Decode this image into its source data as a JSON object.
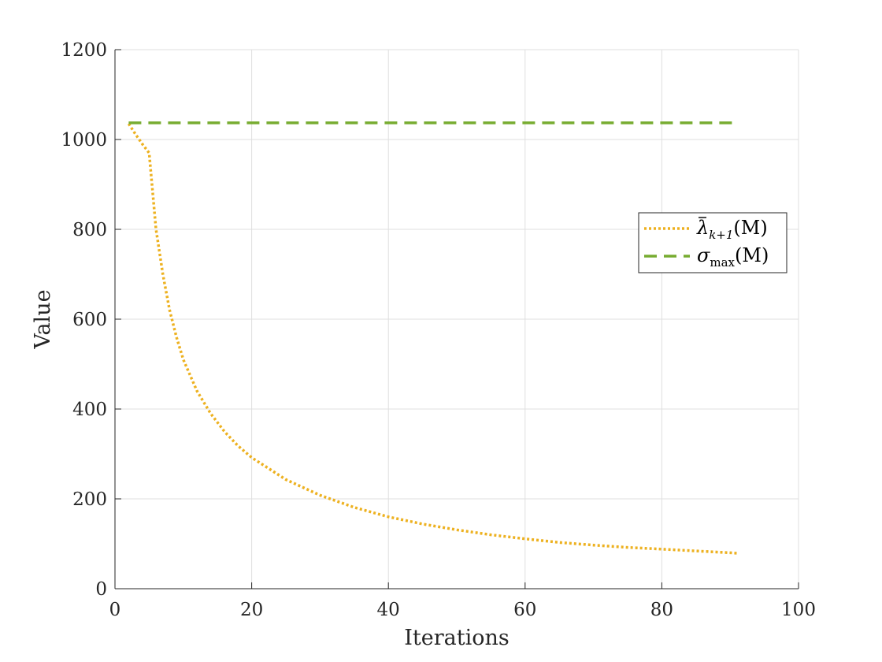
{
  "chart_data": {
    "type": "line",
    "title": "",
    "xlabel": "Iterations",
    "ylabel": "Value",
    "xlim": [
      0,
      100
    ],
    "ylim": [
      0,
      1200
    ],
    "xticks": [
      0,
      20,
      40,
      60,
      80,
      100
    ],
    "yticks": [
      0,
      200,
      400,
      600,
      800,
      1000,
      1200
    ],
    "xtick_labels": [
      "0",
      "20",
      "40",
      "60",
      "80",
      "100"
    ],
    "ytick_labels": [
      "0",
      "200",
      "400",
      "600",
      "800",
      "1000",
      "1200"
    ],
    "grid": true,
    "legend_position": "right",
    "series": [
      {
        "name": "λ̄_{k+1}(M)",
        "legend_parts": {
          "base": "λ",
          "sub": "k+1",
          "arg": "(M)"
        },
        "color": "#EDB120",
        "style": "dotted",
        "x": [
          2,
          3,
          4,
          5,
          6,
          7,
          8,
          9,
          10,
          12,
          14,
          16,
          18,
          20,
          25,
          30,
          35,
          40,
          45,
          50,
          55,
          60,
          65,
          70,
          75,
          80,
          85,
          90,
          91
        ],
        "y": [
          1035,
          1012,
          990,
          970,
          800,
          700,
          620,
          560,
          510,
          440,
          390,
          350,
          318,
          292,
          243,
          208,
          181,
          160,
          144,
          131,
          120,
          111,
          103,
          97,
          92,
          88,
          84,
          80,
          79
        ]
      },
      {
        "name": "σ_max(M)",
        "legend_parts": {
          "base": "σ",
          "sub": "max",
          "arg": "(M)"
        },
        "color": "#77AC30",
        "style": "dashed",
        "x": [
          2,
          91
        ],
        "y": [
          1037,
          1037
        ]
      }
    ]
  }
}
